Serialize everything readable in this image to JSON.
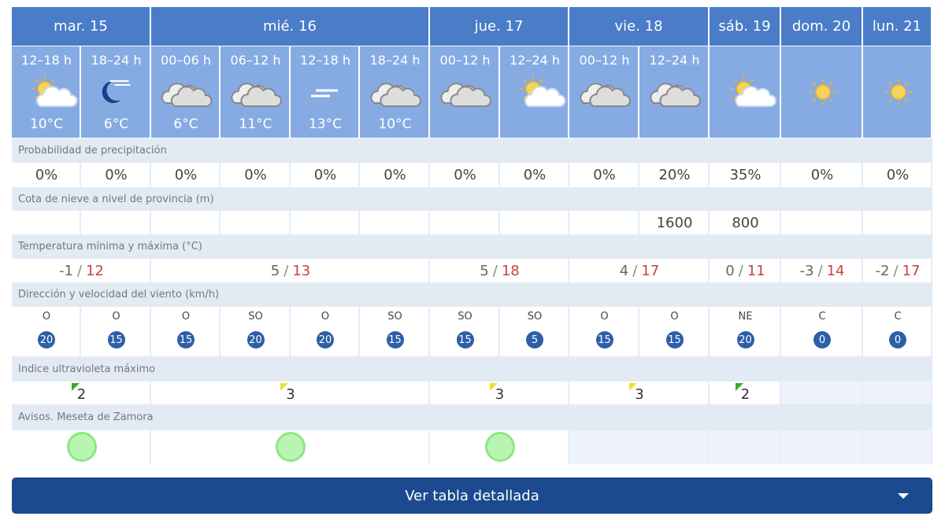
{
  "days": [
    {
      "name": "mar. 15",
      "periods": [
        {
          "label": "12–18 h",
          "temp": "10°C"
        },
        {
          "label": "18–24 h",
          "temp": "6°C"
        }
      ],
      "tmin": -1,
      "tmax": 12,
      "uv": 2
    },
    {
      "name": "mié. 16",
      "periods": [
        {
          "label": "00–06 h",
          "temp": "6°C"
        },
        {
          "label": "06–12 h",
          "temp": "11°C"
        },
        {
          "label": "12–18 h",
          "temp": "13°C"
        },
        {
          "label": "18–24 h",
          "temp": "10°C"
        }
      ],
      "tmin": 5,
      "tmax": 13,
      "uv": 3
    },
    {
      "name": "jue. 17",
      "periods": [
        {
          "label": "00–12 h",
          "temp": null
        },
        {
          "label": "12–24 h",
          "temp": null
        }
      ],
      "tmin": 5,
      "tmax": 18,
      "uv": 3
    },
    {
      "name": "vie. 18",
      "periods": [
        {
          "label": "00–12 h",
          "temp": null
        },
        {
          "label": "12–24 h",
          "temp": null
        }
      ],
      "tmin": 4,
      "tmax": 17,
      "uv": 3
    },
    {
      "name": "sáb. 19",
      "periods": [
        {
          "label": null,
          "temp": null
        }
      ],
      "tmin": 0,
      "tmax": 11,
      "uv": 2
    },
    {
      "name": "dom. 20",
      "periods": [
        {
          "label": null,
          "temp": null
        }
      ],
      "tmin": -3,
      "tmax": 14,
      "uv": null
    },
    {
      "name": "lun. 21",
      "periods": [
        {
          "label": null,
          "temp": null
        }
      ],
      "tmin": -2,
      "tmax": 17,
      "uv": null
    }
  ],
  "labels": {
    "precip": "Probabilidad de precipitación",
    "snow": "Cota de nieve a nivel de provincia (m)",
    "temp": "Temperatura mínima y máxima (°C)",
    "wind": "Dirección y velocidad del viento (km/h)",
    "uv": "Indice ultravioleta máximo",
    "avisos": "Avisos. Meseta de Zamora"
  },
  "precip": [
    "0%",
    "0%",
    "0%",
    "0%",
    "0%",
    "0%",
    "0%",
    "0%",
    "0%",
    "20%",
    "35%",
    "0%",
    "0%"
  ],
  "snow": [
    null,
    null,
    null,
    null,
    null,
    null,
    null,
    null,
    null,
    1600,
    800,
    null,
    null
  ],
  "wind": [
    {
      "dir": "O",
      "speed": 20
    },
    {
      "dir": "O",
      "speed": 15
    },
    {
      "dir": "O",
      "speed": 15
    },
    {
      "dir": "SO",
      "speed": 20
    },
    {
      "dir": "O",
      "speed": 20
    },
    {
      "dir": "SO",
      "speed": 15
    },
    {
      "dir": "SO",
      "speed": 15
    },
    {
      "dir": "SO",
      "speed": 5
    },
    {
      "dir": "O",
      "speed": 15
    },
    {
      "dir": "O",
      "speed": 15
    },
    {
      "dir": "NE",
      "speed": 20
    },
    {
      "dir": "C",
      "speed": 0
    },
    {
      "dir": "C",
      "speed": 0
    }
  ],
  "button": "Ver tabla detallada"
}
